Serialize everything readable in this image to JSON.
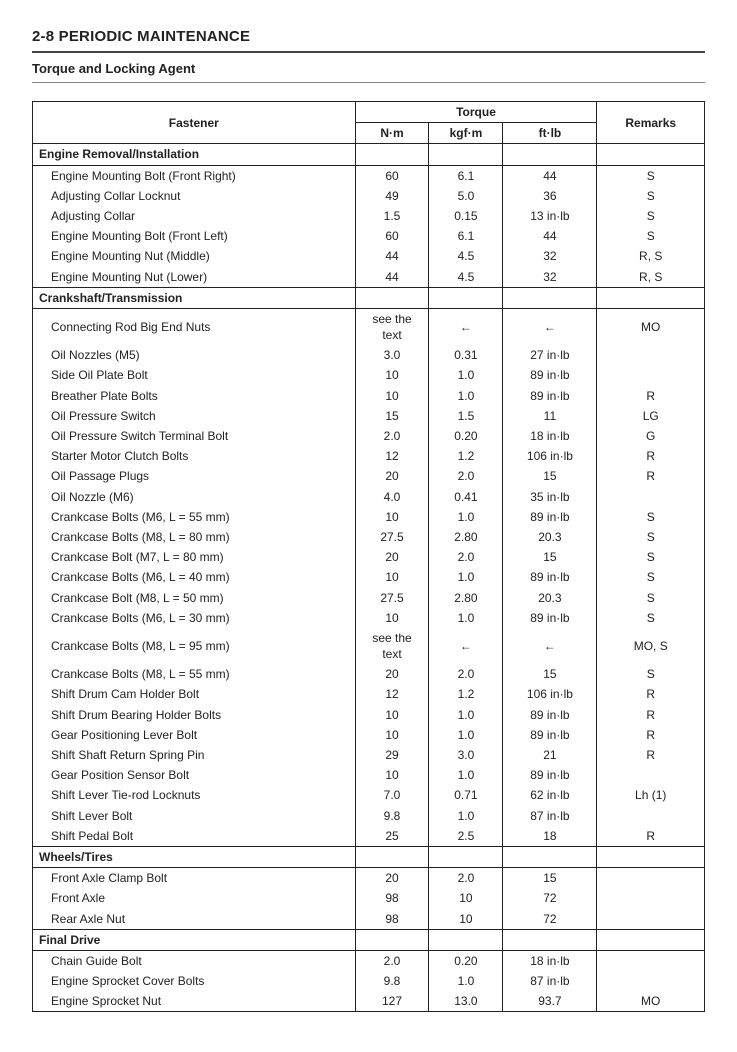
{
  "page_header": "2-8 PERIODIC MAINTENANCE",
  "sub_header": "Torque and Locking Agent",
  "columns": {
    "fastener": "Fastener",
    "torque": "Torque",
    "nm": "N·m",
    "kgfm": "kgf·m",
    "ftlb": "ft·lb",
    "remarks": "Remarks"
  },
  "arrow_left_glyph": "←",
  "sections": [
    {
      "title": "Engine Removal/Installation",
      "rows": [
        {
          "f": "Engine Mounting Bolt (Front Right)",
          "nm": "60",
          "kgfm": "6.1",
          "ftlb": "44",
          "rem": "S"
        },
        {
          "f": "Adjusting Collar Locknut",
          "nm": "49",
          "kgfm": "5.0",
          "ftlb": "36",
          "rem": "S"
        },
        {
          "f": "Adjusting Collar",
          "nm": "1.5",
          "kgfm": "0.15",
          "ftlb": "13 in·lb",
          "rem": "S"
        },
        {
          "f": "Engine Mounting Bolt (Front Left)",
          "nm": "60",
          "kgfm": "6.1",
          "ftlb": "44",
          "rem": "S"
        },
        {
          "f": "Engine Mounting Nut (Middle)",
          "nm": "44",
          "kgfm": "4.5",
          "ftlb": "32",
          "rem": "R, S"
        },
        {
          "f": "Engine Mounting Nut (Lower)",
          "nm": "44",
          "kgfm": "4.5",
          "ftlb": "32",
          "rem": "R, S"
        }
      ]
    },
    {
      "title": "Crankshaft/Transmission",
      "rows": [
        {
          "f": "Connecting Rod Big End Nuts",
          "nm": "see the text",
          "kgfm": "←",
          "ftlb": "←",
          "rem": "MO"
        },
        {
          "f": "Oil Nozzles (M5)",
          "nm": "3.0",
          "kgfm": "0.31",
          "ftlb": "27 in·lb",
          "rem": ""
        },
        {
          "f": "Side Oil Plate Bolt",
          "nm": "10",
          "kgfm": "1.0",
          "ftlb": "89 in·lb",
          "rem": ""
        },
        {
          "f": "Breather Plate Bolts",
          "nm": "10",
          "kgfm": "1.0",
          "ftlb": "89 in·lb",
          "rem": "R"
        },
        {
          "f": "Oil Pressure Switch",
          "nm": "15",
          "kgfm": "1.5",
          "ftlb": "11",
          "rem": "LG"
        },
        {
          "f": "Oil Pressure Switch Terminal Bolt",
          "nm": "2.0",
          "kgfm": "0.20",
          "ftlb": "18 in·lb",
          "rem": "G"
        },
        {
          "f": "Starter Motor Clutch Bolts",
          "nm": "12",
          "kgfm": "1.2",
          "ftlb": "106 in·lb",
          "rem": "R"
        },
        {
          "f": "Oil Passage Plugs",
          "nm": "20",
          "kgfm": "2.0",
          "ftlb": "15",
          "rem": "R"
        },
        {
          "f": "Oil Nozzle (M6)",
          "nm": "4.0",
          "kgfm": "0.41",
          "ftlb": "35 in·lb",
          "rem": ""
        },
        {
          "f": "Crankcase Bolts (M6, L = 55 mm)",
          "nm": "10",
          "kgfm": "1.0",
          "ftlb": "89 in·lb",
          "rem": "S"
        },
        {
          "f": "Crankcase Bolts (M8, L = 80 mm)",
          "nm": "27.5",
          "kgfm": "2.80",
          "ftlb": "20.3",
          "rem": "S"
        },
        {
          "f": "Crankcase Bolt (M7, L = 80 mm)",
          "nm": "20",
          "kgfm": "2.0",
          "ftlb": "15",
          "rem": "S"
        },
        {
          "f": "Crankcase Bolts (M6, L = 40 mm)",
          "nm": "10",
          "kgfm": "1.0",
          "ftlb": "89 in·lb",
          "rem": "S"
        },
        {
          "f": "Crankcase Bolt (M8, L = 50 mm)",
          "nm": "27.5",
          "kgfm": "2.80",
          "ftlb": "20.3",
          "rem": "S"
        },
        {
          "f": "Crankcase Bolts (M6, L = 30 mm)",
          "nm": "10",
          "kgfm": "1.0",
          "ftlb": "89 in·lb",
          "rem": "S"
        },
        {
          "f": "Crankcase Bolts (M8, L = 95 mm)",
          "nm": "see the text",
          "kgfm": "←",
          "ftlb": "←",
          "rem": "MO, S"
        },
        {
          "f": "Crankcase Bolts (M8, L = 55 mm)",
          "nm": "20",
          "kgfm": "2.0",
          "ftlb": "15",
          "rem": "S"
        },
        {
          "f": "Shift Drum Cam Holder Bolt",
          "nm": "12",
          "kgfm": "1.2",
          "ftlb": "106 in·lb",
          "rem": "R"
        },
        {
          "f": "Shift Drum Bearing Holder Bolts",
          "nm": "10",
          "kgfm": "1.0",
          "ftlb": "89 in·lb",
          "rem": "R"
        },
        {
          "f": "Gear Positioning Lever Bolt",
          "nm": "10",
          "kgfm": "1.0",
          "ftlb": "89 in·lb",
          "rem": "R"
        },
        {
          "f": "Shift Shaft Return Spring Pin",
          "nm": "29",
          "kgfm": "3.0",
          "ftlb": "21",
          "rem": "R"
        },
        {
          "f": "Gear Position Sensor Bolt",
          "nm": "10",
          "kgfm": "1.0",
          "ftlb": "89 in·lb",
          "rem": ""
        },
        {
          "f": "Shift Lever Tie-rod Locknuts",
          "nm": "7.0",
          "kgfm": "0.71",
          "ftlb": "62 in·lb",
          "rem": "Lh (1)"
        },
        {
          "f": "Shift Lever Bolt",
          "nm": "9.8",
          "kgfm": "1.0",
          "ftlb": "87 in·lb",
          "rem": ""
        },
        {
          "f": "Shift Pedal Bolt",
          "nm": "25",
          "kgfm": "2.5",
          "ftlb": "18",
          "rem": "R"
        }
      ]
    },
    {
      "title": "Wheels/Tires",
      "rows": [
        {
          "f": "Front Axle Clamp Bolt",
          "nm": "20",
          "kgfm": "2.0",
          "ftlb": "15",
          "rem": ""
        },
        {
          "f": "Front Axle",
          "nm": "98",
          "kgfm": "10",
          "ftlb": "72",
          "rem": ""
        },
        {
          "f": "Rear Axle Nut",
          "nm": "98",
          "kgfm": "10",
          "ftlb": "72",
          "rem": ""
        }
      ]
    },
    {
      "title": "Final Drive",
      "rows": [
        {
          "f": "Chain Guide Bolt",
          "nm": "2.0",
          "kgfm": "0.20",
          "ftlb": "18 in·lb",
          "rem": ""
        },
        {
          "f": "Engine Sprocket Cover Bolts",
          "nm": "9.8",
          "kgfm": "1.0",
          "ftlb": "87 in·lb",
          "rem": ""
        },
        {
          "f": "Engine Sprocket Nut",
          "nm": "127",
          "kgfm": "13.0",
          "ftlb": "93.7",
          "rem": "MO"
        }
      ]
    }
  ]
}
